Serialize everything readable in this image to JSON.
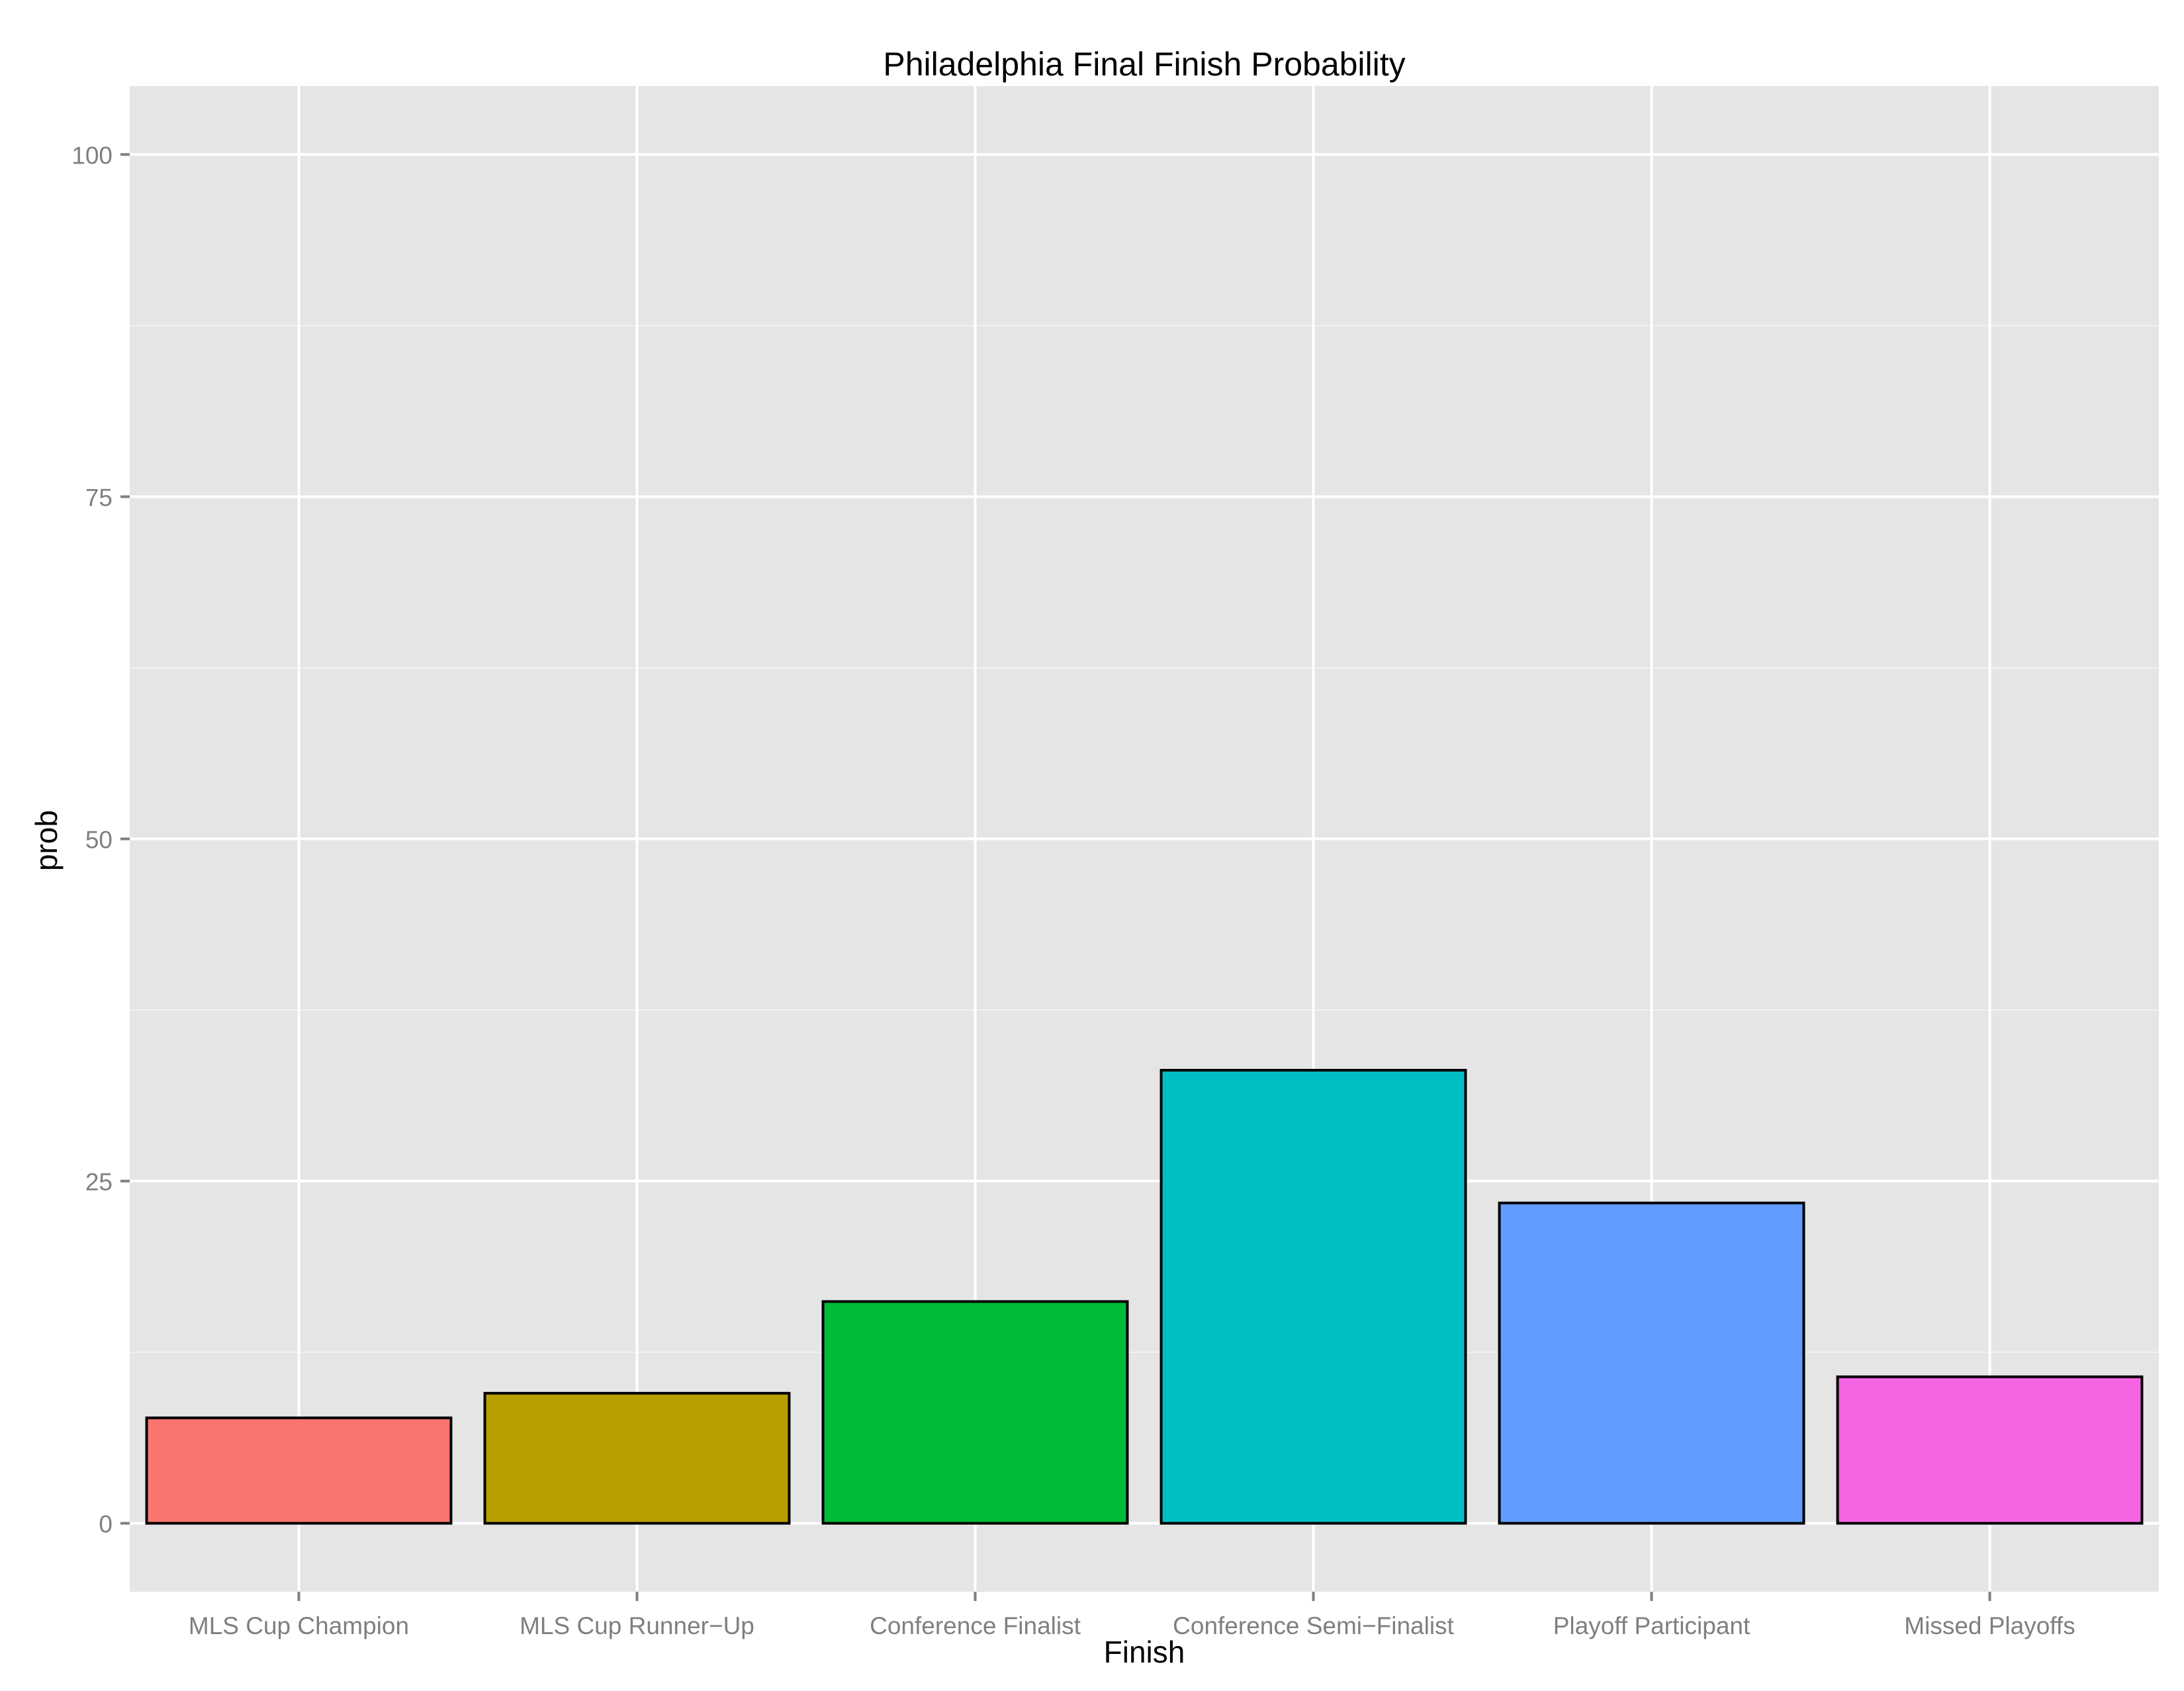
{
  "chart_data": {
    "type": "bar",
    "title": "Philadelphia Final Finish Probability",
    "xlabel": "Finish",
    "ylabel": "prob",
    "categories": [
      "MLS Cup Champion",
      "MLS Cup Runner−Up",
      "Conference Finalist",
      "Conference Semi−Finalist",
      "Playoff Participant",
      "Missed Playoffs"
    ],
    "values": [
      7.7,
      9.5,
      16.2,
      33.1,
      23.4,
      10.7
    ],
    "colors": [
      "#F8766D",
      "#B79F00",
      "#00BA38",
      "#00BFC4",
      "#619CFF",
      "#F564E3"
    ],
    "ylim": [
      -5,
      105
    ],
    "yticks": [
      0,
      25,
      50,
      75,
      100
    ],
    "grid": true,
    "legend": "none",
    "panel_color": "#E5E5E5",
    "grid_color": "#FFFFFF",
    "bar_outline_color": "#000000"
  }
}
